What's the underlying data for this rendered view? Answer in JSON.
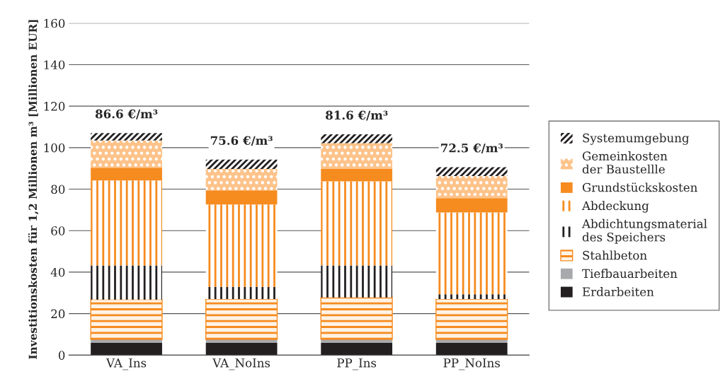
{
  "chart_data": {
    "type": "bar",
    "stacked": true,
    "categories": [
      "VA_Ins",
      "VA_NoIns",
      "PP_Ins",
      "PP_NoIns"
    ],
    "ylabel": "Investitionskosten für 1,2 Millionen m³ [Millionen EUR]",
    "ylim": [
      0,
      160
    ],
    "yticks": [
      0,
      20,
      40,
      60,
      80,
      100,
      120,
      140,
      160
    ],
    "grid": "y",
    "legend": "right",
    "series": [
      {
        "name": "Erdarbeiten",
        "color": "#231f20",
        "values": [
          5.9,
          5.9,
          5.9,
          5.9
        ]
      },
      {
        "name": "Tiefbauarbeiten",
        "color": "#a7a9ac",
        "values": [
          1.7,
          1.7,
          1.7,
          1.7
        ]
      },
      {
        "name": "Stahlbeton",
        "color": "#f68b1f",
        "values": [
          19.2,
          19.4,
          20.2,
          19.4
        ]
      },
      {
        "name": "Abdichtungsmaterial\ndes Speichers",
        "color": "#231f20",
        "values": [
          16.4,
          5.9,
          15.4,
          2.3
        ]
      },
      {
        "name": "Abdeckung",
        "color": "#f68b1f",
        "values": [
          41.0,
          39.7,
          40.6,
          39.5
        ]
      },
      {
        "name": "Grundstückskosten",
        "color": "#f68b1f",
        "values": [
          6.1,
          6.8,
          5.9,
          6.9
        ]
      },
      {
        "name": "Gemeinkosten\nder Baustellle",
        "color": "#fdc38a",
        "values": [
          13.1,
          10.3,
          12.5,
          10.6
        ]
      },
      {
        "name": "Systemumgebung",
        "color": "#231f20",
        "values": [
          3.6,
          4.5,
          4.2,
          4.3
        ]
      }
    ],
    "annotations": [
      "86.6 €/m³",
      "75.6 €/m³",
      "81.6 €/m³",
      "72.5 €/m³"
    ]
  }
}
